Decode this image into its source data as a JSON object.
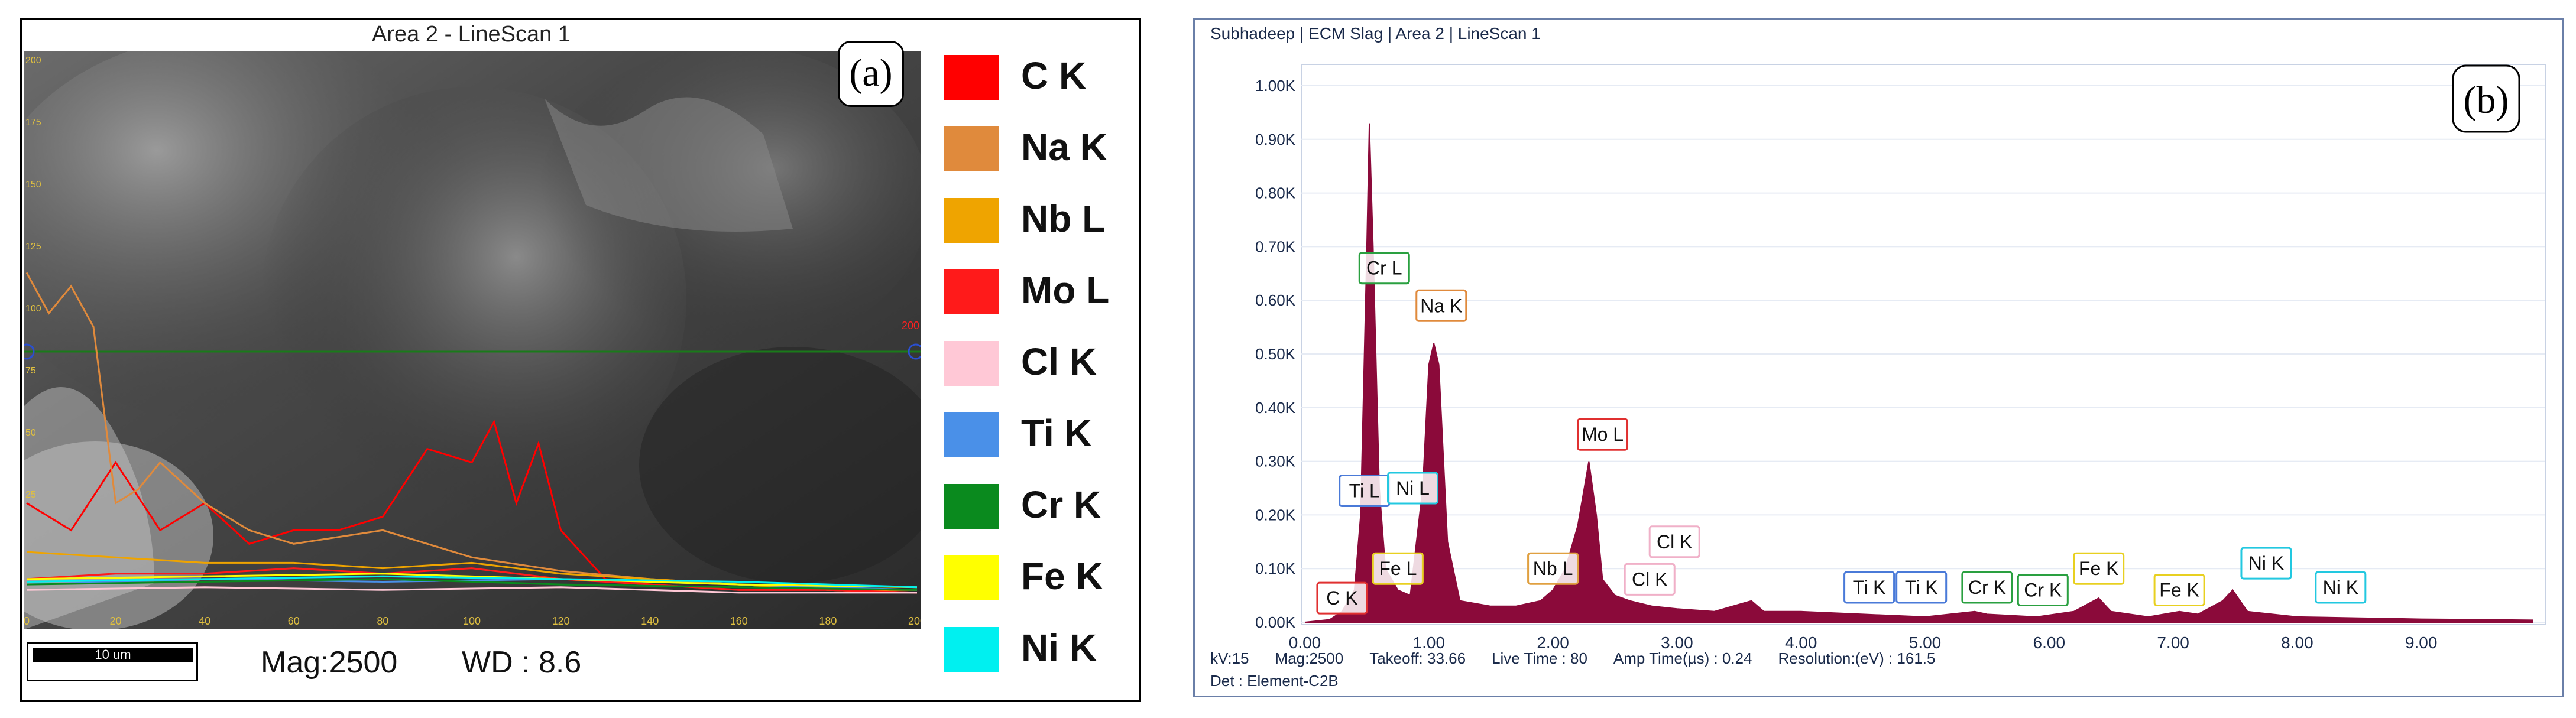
{
  "panel_a": {
    "title": "Area 2 - LineScan 1",
    "label": "(a)",
    "scale_bar": "10 um",
    "mag": "Mag:2500",
    "wd": "WD : 8.6",
    "left_axis_ticks": [
      "200",
      "175",
      "150",
      "125",
      "100",
      "75",
      "50",
      "25"
    ],
    "right_axis_label": "200",
    "x_ticks": [
      "0",
      "20",
      "40",
      "60",
      "80",
      "100",
      "120",
      "140",
      "160",
      "180",
      "200"
    ],
    "legend": [
      {
        "label": "C K",
        "color": "#ff0000"
      },
      {
        "label": "Na K",
        "color": "#e08a3c"
      },
      {
        "label": "Nb L",
        "color": "#efa400"
      },
      {
        "label": "Mo L",
        "color": "#ff1a1a"
      },
      {
        "label": "Cl K",
        "color": "#ffc8d6"
      },
      {
        "label": "Ti K",
        "color": "#4a90e8"
      },
      {
        "label": "Cr K",
        "color": "#0a8a1e"
      },
      {
        "label": "Fe K",
        "color": "#ffff00"
      },
      {
        "label": "Ni K",
        "color": "#00f0f0"
      }
    ]
  },
  "panel_b": {
    "title": "Subhadeep | ECM Slag | Area 2 | LineScan 1",
    "label": "(b)",
    "footer_line1": [
      "kV:15",
      "Mag:2500",
      "Takeoff: 33.66",
      "Live Time : 80",
      "Amp Time(µs) : 0.24",
      "Resolution:(eV) : 161.5"
    ],
    "footer_line2": "Det : Element-C2B",
    "fill_color": "#8b0a3a",
    "peak_labels": [
      {
        "text": "C K",
        "color": "#e03030"
      },
      {
        "text": "Ti L",
        "color": "#4a7ad8"
      },
      {
        "text": "Ni L",
        "color": "#22c8e0"
      },
      {
        "text": "Fe L",
        "color": "#e8d020"
      },
      {
        "text": "Cr L",
        "color": "#2aa040"
      },
      {
        "text": "Na K",
        "color": "#e08a3c"
      },
      {
        "text": "Nb L",
        "color": "#e0a040"
      },
      {
        "text": "Mo L",
        "color": "#e03030"
      },
      {
        "text": "Cl K",
        "color": "#f0b0c8"
      },
      {
        "text": "Cl K",
        "color": "#f0b0c8"
      },
      {
        "text": "Ti K",
        "color": "#4a7ad8"
      },
      {
        "text": "Ti K",
        "color": "#4a7ad8"
      },
      {
        "text": "Cr K",
        "color": "#2aa040"
      },
      {
        "text": "Cr K",
        "color": "#2aa040"
      },
      {
        "text": "Fe K",
        "color": "#e8d020"
      },
      {
        "text": "Fe K",
        "color": "#e8d020"
      },
      {
        "text": "Ni K",
        "color": "#22c8e0"
      },
      {
        "text": "Ni K",
        "color": "#22c8e0"
      }
    ]
  },
  "chart_data": [
    {
      "type": "line",
      "title": "Area 2 - LineScan 1",
      "xlabel": "",
      "ylabel": "",
      "xlim": [
        0,
        200
      ],
      "ylim": [
        0,
        200
      ],
      "x_ticks": [
        0,
        20,
        40,
        60,
        80,
        100,
        120,
        140,
        160,
        180,
        200
      ],
      "series": [
        {
          "name": "C K",
          "x": [
            0,
            10,
            20,
            30,
            40,
            50,
            60,
            70,
            80,
            90,
            100,
            105,
            110,
            115,
            120,
            130,
            140,
            160,
            180,
            200
          ],
          "y": [
            40,
            30,
            55,
            30,
            40,
            25,
            30,
            30,
            35,
            60,
            55,
            70,
            40,
            62,
            30,
            12,
            10,
            8,
            8,
            7
          ]
        },
        {
          "name": "Na K",
          "x": [
            0,
            5,
            10,
            15,
            20,
            25,
            30,
            40,
            50,
            60,
            80,
            100,
            120,
            140,
            160,
            180,
            200
          ],
          "y": [
            125,
            110,
            120,
            105,
            40,
            45,
            55,
            40,
            30,
            25,
            30,
            20,
            15,
            12,
            10,
            8,
            7
          ]
        },
        {
          "name": "Nb L",
          "x": [
            0,
            20,
            40,
            60,
            80,
            100,
            120,
            140,
            160,
            180,
            200
          ],
          "y": [
            22,
            20,
            18,
            18,
            16,
            18,
            14,
            12,
            10,
            8,
            8
          ]
        },
        {
          "name": "Mo L",
          "x": [
            0,
            20,
            40,
            60,
            80,
            100,
            120,
            140,
            160,
            180,
            200
          ],
          "y": [
            12,
            14,
            14,
            16,
            14,
            16,
            12,
            10,
            8,
            8,
            7
          ]
        },
        {
          "name": "Cl K",
          "x": [
            0,
            40,
            80,
            120,
            160,
            200
          ],
          "y": [
            8,
            9,
            8,
            9,
            7,
            7
          ]
        },
        {
          "name": "Ti K",
          "x": [
            0,
            40,
            80,
            120,
            160,
            200
          ],
          "y": [
            10,
            12,
            11,
            12,
            10,
            8
          ]
        },
        {
          "name": "Cr K",
          "x": [
            0,
            40,
            80,
            120,
            160,
            200
          ],
          "y": [
            10,
            11,
            12,
            10,
            9,
            8
          ]
        },
        {
          "name": "Fe K",
          "x": [
            0,
            40,
            80,
            120,
            160,
            200
          ],
          "y": [
            12,
            13,
            14,
            12,
            10,
            9
          ]
        },
        {
          "name": "Ni K",
          "x": [
            0,
            40,
            80,
            120,
            160,
            200
          ],
          "y": [
            11,
            12,
            13,
            12,
            11,
            9
          ]
        }
      ],
      "legend_position": "right"
    },
    {
      "type": "area",
      "title": "Subhadeep | ECM Slag | Area 2 | LineScan 1",
      "xlabel": "",
      "ylabel": "",
      "xlim": [
        0,
        9.9
      ],
      "ylim": [
        0,
        1.0
      ],
      "x_ticks": [
        "0.00",
        "1.00",
        "2.00",
        "3.00",
        "4.00",
        "5.00",
        "6.00",
        "7.00",
        "8.00",
        "9.00"
      ],
      "y_ticks": [
        "0.00K",
        "0.10K",
        "0.20K",
        "0.30K",
        "0.40K",
        "0.50K",
        "0.60K",
        "0.70K",
        "0.80K",
        "0.90K",
        "1.00K"
      ],
      "x": [
        0.0,
        0.2,
        0.3,
        0.4,
        0.45,
        0.5,
        0.52,
        0.55,
        0.6,
        0.65,
        0.7,
        0.75,
        0.85,
        0.95,
        1.0,
        1.04,
        1.08,
        1.15,
        1.25,
        1.5,
        1.7,
        1.9,
        2.0,
        2.1,
        2.2,
        2.29,
        2.35,
        2.4,
        2.5,
        2.62,
        2.8,
        3.0,
        3.3,
        3.6,
        3.7,
        3.8,
        4.0,
        4.5,
        5.0,
        5.4,
        5.5,
        5.9,
        6.2,
        6.4,
        6.5,
        6.8,
        7.05,
        7.2,
        7.4,
        7.48,
        7.6,
        8.0,
        8.5,
        9.0,
        9.5,
        9.9
      ],
      "y": [
        0.0,
        0.005,
        0.02,
        0.06,
        0.2,
        0.7,
        0.93,
        0.7,
        0.25,
        0.1,
        0.08,
        0.06,
        0.05,
        0.25,
        0.48,
        0.52,
        0.48,
        0.15,
        0.04,
        0.03,
        0.03,
        0.04,
        0.06,
        0.1,
        0.18,
        0.3,
        0.2,
        0.08,
        0.05,
        0.04,
        0.03,
        0.025,
        0.02,
        0.04,
        0.02,
        0.02,
        0.02,
        0.015,
        0.01,
        0.02,
        0.015,
        0.01,
        0.02,
        0.045,
        0.02,
        0.01,
        0.02,
        0.015,
        0.04,
        0.06,
        0.02,
        0.01,
        0.008,
        0.006,
        0.005,
        0.004
      ],
      "peak_labels": [
        "C K",
        "Ti L",
        "Ni L",
        "Fe L",
        "Cr L",
        "Na K",
        "Nb L",
        "Mo L",
        "Cl K",
        "Cl K",
        "Ti K",
        "Ti K",
        "Cr K",
        "Cr K",
        "Fe K",
        "Fe K",
        "Ni K",
        "Ni K"
      ]
    }
  ]
}
